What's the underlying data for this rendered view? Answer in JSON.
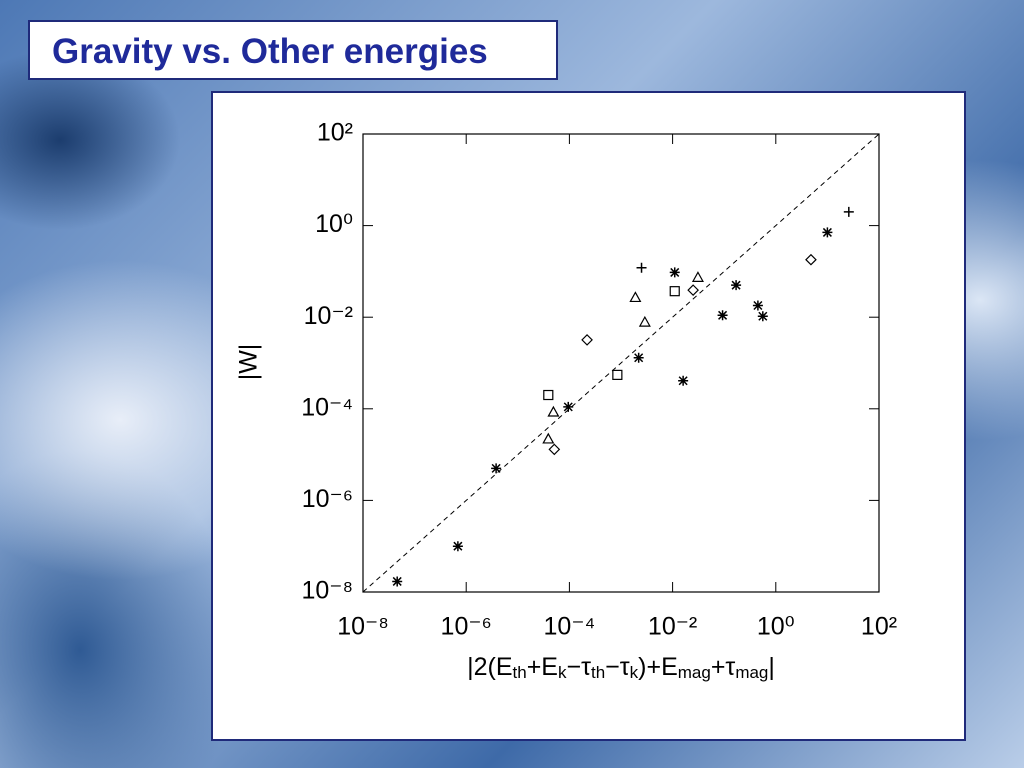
{
  "title": "Gravity vs. Other energies",
  "chart_data": {
    "type": "scatter",
    "ylabel": "|W|",
    "xlabel_parts": [
      "|2(E",
      "th",
      "+E",
      "k",
      "−τ",
      "th",
      "−τ",
      "k",
      ")+E",
      "mag",
      "+τ",
      "mag",
      "|"
    ],
    "log_x": true,
    "log_y": true,
    "identity_line": true,
    "xlim": [
      1e-08,
      100.0
    ],
    "ylim": [
      1e-08,
      100.0
    ],
    "xticks": [
      {
        "value": 1e-08,
        "label": "10⁻⁸"
      },
      {
        "value": 1e-06,
        "label": "10⁻⁶"
      },
      {
        "value": 0.0001,
        "label": "10⁻⁴"
      },
      {
        "value": 0.01,
        "label": "10⁻²"
      },
      {
        "value": 1,
        "label": "10⁰"
      },
      {
        "value": 100,
        "label": "10²"
      }
    ],
    "yticks": [
      {
        "value": 1e-08,
        "label": "10⁻⁸"
      },
      {
        "value": 1e-06,
        "label": "10⁻⁶"
      },
      {
        "value": 0.0001,
        "label": "10⁻⁴"
      },
      {
        "value": 0.01,
        "label": "10⁻²"
      },
      {
        "value": 1,
        "label": "10⁰"
      },
      {
        "value": 100,
        "label": "10²"
      }
    ],
    "series": [
      {
        "marker": "plus",
        "color": "#000000",
        "x": [
          26,
          0.0025
        ],
        "values": [
          2.0,
          0.12
        ]
      },
      {
        "marker": "asterisk",
        "color": "#000000",
        "x": [
          4.6e-08,
          6.9e-07,
          3.8e-06,
          0.0022,
          0.016,
          0.011,
          0.17,
          0.093,
          0.45,
          0.56,
          10,
          9.5e-05
        ],
        "values": [
          1.7e-08,
          1e-07,
          5e-06,
          0.0013,
          0.00041,
          0.095,
          0.05,
          0.011,
          0.018,
          0.0105,
          0.71,
          0.00011
        ]
      },
      {
        "marker": "triangle",
        "color": "#000000",
        "x": [
          3.9e-05,
          4.9e-05,
          0.0019,
          0.0029,
          0.031
        ],
        "values": [
          2.2e-05,
          8.5e-05,
          0.027,
          0.0078,
          0.074
        ]
      },
      {
        "marker": "square",
        "color": "#000000",
        "x": [
          3.9e-05,
          0.00085,
          0.011
        ],
        "values": [
          0.0002,
          0.00055,
          0.037
        ]
      },
      {
        "marker": "diamond",
        "color": "#000000",
        "x": [
          5.1e-05,
          0.00022,
          0.025,
          4.8
        ],
        "values": [
          1.3e-05,
          0.0032,
          0.039,
          0.18
        ]
      }
    ]
  }
}
